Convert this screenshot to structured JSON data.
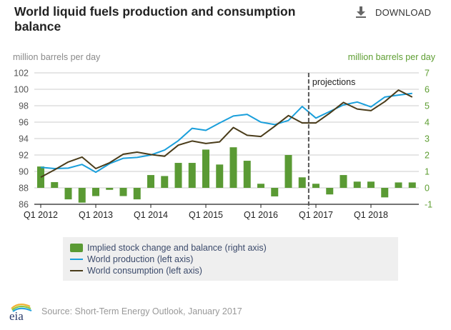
{
  "header": {
    "title": "World liquid fuels production and consumption balance",
    "download_label": "DOWNLOAD",
    "download_icon": "download-icon"
  },
  "axes": {
    "left_unit": "million barrels per day",
    "right_unit": "million barrels per day"
  },
  "colors": {
    "production": "#1a9fdb",
    "consumption": "#4a3c1a",
    "balance": "#5a9a34",
    "right_axis_text": "#5e9e32",
    "left_axis_text": "#555555"
  },
  "legend": {
    "items": [
      "Implied stock change and balance (right axis)",
      "World production (left axis)",
      "World consumption (left axis)"
    ]
  },
  "footer": {
    "logo_text": "eia",
    "source": "Source: Short-Term Energy Outlook, January 2017"
  },
  "chart_data": {
    "type": "bar+line",
    "title": "World liquid fuels production and consumption balance",
    "ylabel_left": "million barrels per day",
    "ylabel_right": "million barrels per day",
    "ylim_left": [
      86,
      102
    ],
    "yticks_left": [
      86,
      88,
      90,
      92,
      94,
      96,
      98,
      100,
      102
    ],
    "ylim_right": [
      -1,
      7
    ],
    "yticks_right": [
      -1,
      0,
      1,
      2,
      3,
      4,
      5,
      6,
      7
    ],
    "xtick_labels": [
      "Q1 2012",
      "Q1 2013",
      "Q1 2014",
      "Q1 2015",
      "Q1 2016",
      "Q1 2017",
      "Q1 2018"
    ],
    "grid": true,
    "legend_position": "bottom",
    "annotation": {
      "text": "projections",
      "after_quarter_index": 19.5
    },
    "categories": [
      "Q1 2012",
      "Q2 2012",
      "Q3 2012",
      "Q4 2012",
      "Q1 2013",
      "Q2 2013",
      "Q3 2013",
      "Q4 2013",
      "Q1 2014",
      "Q2 2014",
      "Q3 2014",
      "Q4 2014",
      "Q1 2015",
      "Q2 2015",
      "Q3 2015",
      "Q4 2015",
      "Q1 2016",
      "Q2 2016",
      "Q3 2016",
      "Q4 2016",
      "Q1 2017",
      "Q2 2017",
      "Q3 2017",
      "Q4 2017",
      "Q1 2018",
      "Q2 2018",
      "Q3 2018",
      "Q4 2018"
    ],
    "series": [
      {
        "name": "Implied stock change and balance (right axis)",
        "type": "bar",
        "axis": "right",
        "values": [
          1.3,
          0.35,
          -0.7,
          -0.9,
          -0.5,
          -0.12,
          -0.5,
          -0.7,
          0.78,
          0.72,
          1.52,
          1.52,
          2.33,
          1.42,
          2.47,
          1.65,
          0.25,
          -0.52,
          2.0,
          0.64,
          0.25,
          -0.4,
          0.78,
          0.38,
          0.38,
          -0.58,
          0.33,
          0.33
        ]
      },
      {
        "name": "World production (left axis)",
        "type": "line",
        "axis": "left",
        "values": [
          90.5,
          90.35,
          90.4,
          90.85,
          89.9,
          90.95,
          91.6,
          91.7,
          92.0,
          92.6,
          93.75,
          95.25,
          95.0,
          95.9,
          96.75,
          96.95,
          96.0,
          95.7,
          96.2,
          97.9,
          96.5,
          97.3,
          98.1,
          98.45,
          97.85,
          99.05,
          99.3,
          99.5
        ]
      },
      {
        "name": "World consumption (left axis)",
        "type": "line",
        "axis": "left",
        "values": [
          89.3,
          90.2,
          91.15,
          91.75,
          90.35,
          91.05,
          92.1,
          92.35,
          92.05,
          91.85,
          93.2,
          93.7,
          93.4,
          93.6,
          95.35,
          94.4,
          94.25,
          95.5,
          96.8,
          95.9,
          95.9,
          97.1,
          98.4,
          97.6,
          97.4,
          98.5,
          99.9,
          99.05
        ]
      }
    ]
  }
}
